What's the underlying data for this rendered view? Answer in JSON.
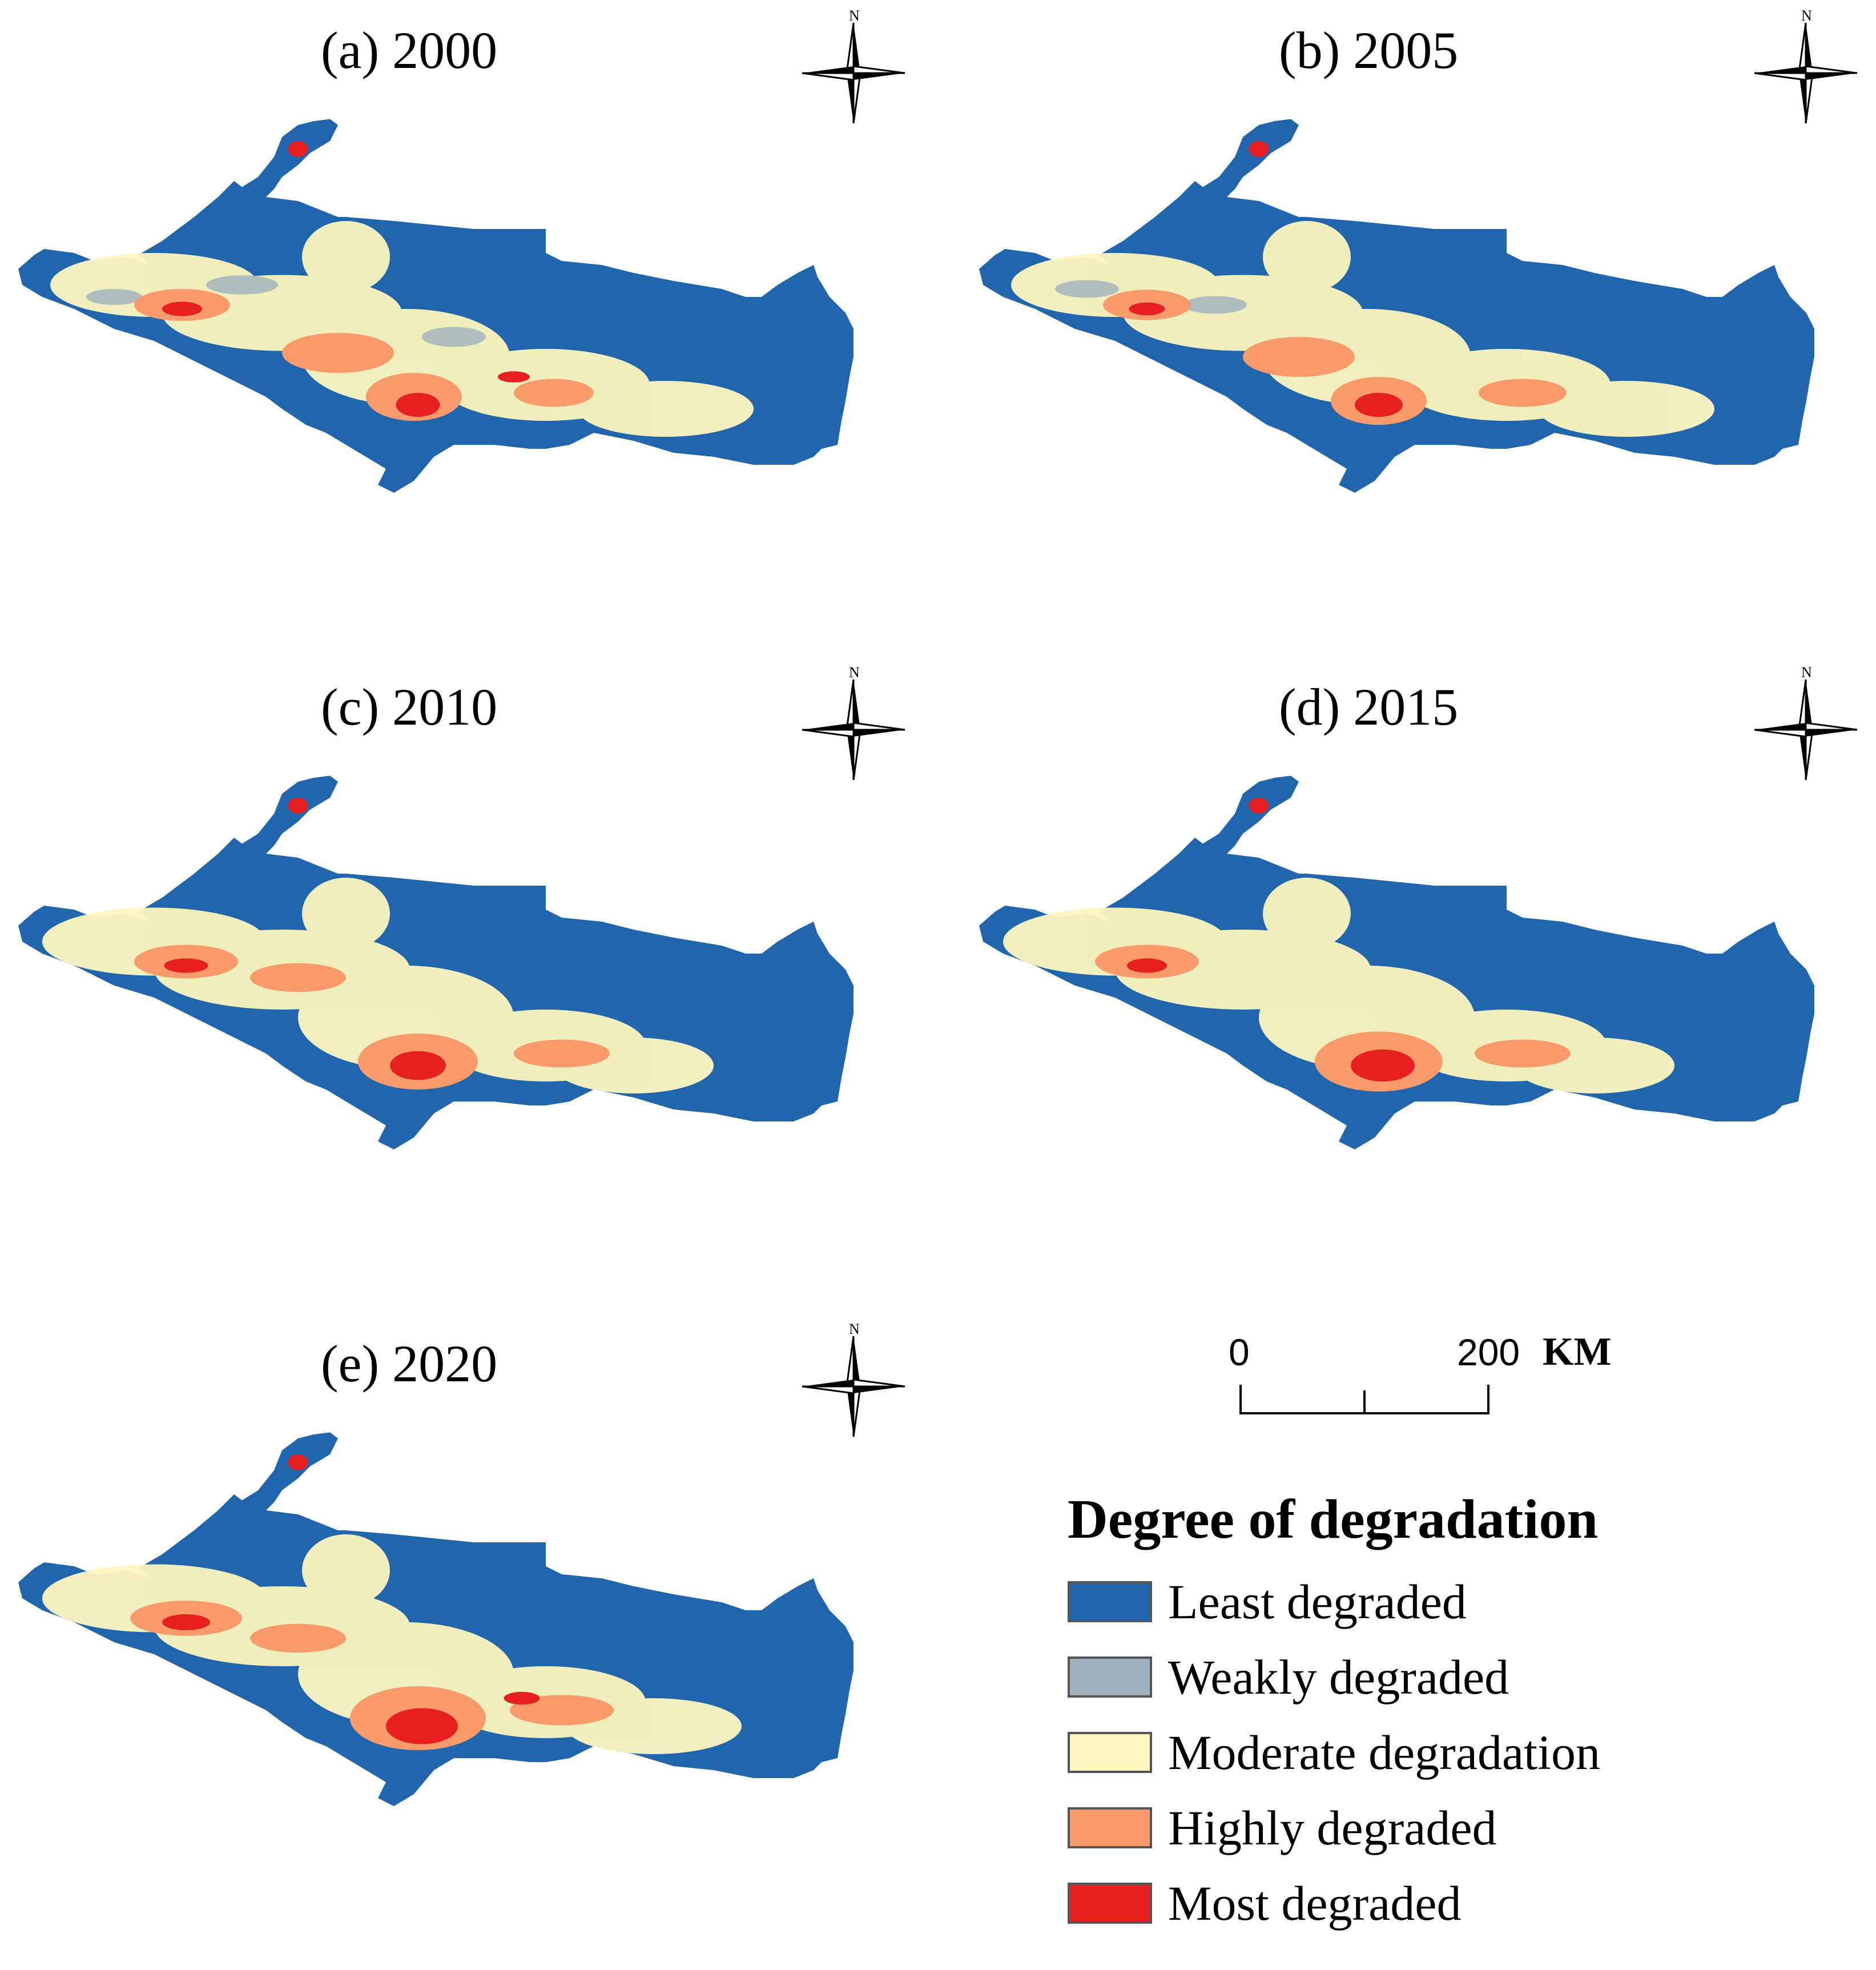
{
  "panels": [
    {
      "title": "(a) 2000"
    },
    {
      "title": "(b) 2005"
    },
    {
      "title": "(c) 2010"
    },
    {
      "title": "(d) 2015"
    },
    {
      "title": "(e) 2020"
    }
  ],
  "north_arrow": {
    "label": "N"
  },
  "scale_bar": {
    "start": "0",
    "end": "200",
    "unit": "KM"
  },
  "legend": {
    "title": "Degree of degradation",
    "items": [
      {
        "label": "Least degraded",
        "color": "#2166ac"
      },
      {
        "label": "Weakly degraded",
        "color": "#a0b0bc"
      },
      {
        "label": "Moderate degradation",
        "color": "#fdf6c0"
      },
      {
        "label": "Highly degraded",
        "color": "#f99a6a"
      },
      {
        "label": "Most degraded",
        "color": "#e62020"
      }
    ]
  }
}
